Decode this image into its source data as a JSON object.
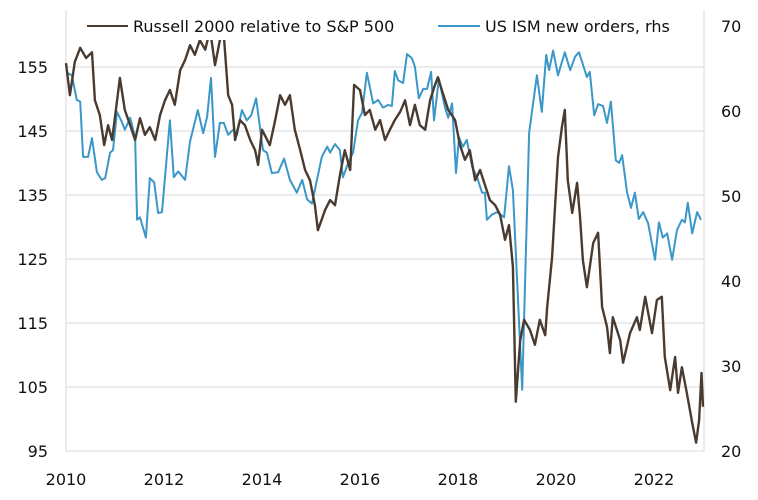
{
  "chart_data": {
    "type": "line",
    "title": "",
    "xlabel": "",
    "ylabel": "",
    "ylabel_right": "",
    "grid": true,
    "legend_position": "top",
    "x_ticks": [
      "2010",
      "2012",
      "2014",
      "2016",
      "2018",
      "2020",
      "2022"
    ],
    "x_tick_values": [
      2010,
      2012,
      2014,
      2016,
      2018,
      2020,
      2022
    ],
    "y_left_ticks": [
      "95",
      "105",
      "115",
      "125",
      "135",
      "145",
      "155"
    ],
    "y_left_tick_values": [
      95,
      105,
      115,
      125,
      135,
      145,
      155
    ],
    "y_right_ticks": [
      "20",
      "30",
      "40",
      "50",
      "60",
      "70"
    ],
    "y_right_tick_values": [
      20,
      30,
      40,
      50,
      60,
      70
    ],
    "xlim": [
      2010,
      2023
    ],
    "ylim_left": [
      95,
      155
    ],
    "ylim_right": [
      20,
      70
    ],
    "series": [
      {
        "name": "Russell 2000 relative to S&P 500",
        "axis": "left",
        "color": "#4a3b30",
        "points": [
          [
            2010.0,
            155.6
          ],
          [
            2010.08,
            150.6
          ],
          [
            2010.18,
            155.8
          ],
          [
            2010.29,
            158.0
          ],
          [
            2010.41,
            156.4
          ],
          [
            2010.53,
            157.3
          ],
          [
            2010.59,
            149.8
          ],
          [
            2010.69,
            147.5
          ],
          [
            2010.78,
            142.8
          ],
          [
            2010.86,
            145.9
          ],
          [
            2010.94,
            143.6
          ],
          [
            2011.1,
            153.3
          ],
          [
            2011.2,
            148.3
          ],
          [
            2011.31,
            145.9
          ],
          [
            2011.41,
            143.6
          ],
          [
            2011.51,
            147.0
          ],
          [
            2011.61,
            144.4
          ],
          [
            2011.71,
            145.6
          ],
          [
            2011.82,
            143.6
          ],
          [
            2011.92,
            147.5
          ],
          [
            2012.02,
            149.8
          ],
          [
            2012.12,
            151.4
          ],
          [
            2012.22,
            149.1
          ],
          [
            2012.33,
            154.5
          ],
          [
            2012.43,
            156.1
          ],
          [
            2012.53,
            158.4
          ],
          [
            2012.63,
            156.9
          ],
          [
            2012.73,
            159.2
          ],
          [
            2012.84,
            157.7
          ],
          [
            2012.94,
            160.8
          ],
          [
            2013.04,
            155.3
          ],
          [
            2013.14,
            159.2
          ],
          [
            2013.22,
            160.0
          ],
          [
            2013.31,
            150.6
          ],
          [
            2013.39,
            149.1
          ],
          [
            2013.45,
            143.6
          ],
          [
            2013.55,
            146.7
          ],
          [
            2013.65,
            145.9
          ],
          [
            2013.76,
            143.6
          ],
          [
            2013.86,
            142.0
          ],
          [
            2013.92,
            139.7
          ],
          [
            2014.0,
            145.2
          ],
          [
            2014.16,
            142.8
          ],
          [
            2014.27,
            146.7
          ],
          [
            2014.37,
            150.6
          ],
          [
            2014.47,
            149.1
          ],
          [
            2014.57,
            150.6
          ],
          [
            2014.67,
            145.2
          ],
          [
            2014.78,
            142.0
          ],
          [
            2014.88,
            138.9
          ],
          [
            2014.98,
            137.3
          ],
          [
            2015.08,
            133.4
          ],
          [
            2015.14,
            129.5
          ],
          [
            2015.29,
            132.7
          ],
          [
            2015.39,
            134.2
          ],
          [
            2015.49,
            133.4
          ],
          [
            2015.59,
            138.1
          ],
          [
            2015.69,
            142.0
          ],
          [
            2015.8,
            138.9
          ],
          [
            2015.88,
            152.2
          ],
          [
            2016.0,
            151.4
          ],
          [
            2016.1,
            147.5
          ],
          [
            2016.2,
            148.3
          ],
          [
            2016.31,
            145.2
          ],
          [
            2016.41,
            146.7
          ],
          [
            2016.51,
            143.6
          ],
          [
            2016.61,
            145.2
          ],
          [
            2016.71,
            146.7
          ],
          [
            2016.82,
            148.0
          ],
          [
            2016.92,
            149.8
          ],
          [
            2017.02,
            145.9
          ],
          [
            2017.12,
            149.1
          ],
          [
            2017.22,
            145.9
          ],
          [
            2017.33,
            145.2
          ],
          [
            2017.43,
            149.8
          ],
          [
            2017.53,
            152.2
          ],
          [
            2017.59,
            153.4
          ],
          [
            2017.67,
            151.4
          ],
          [
            2017.8,
            148.3
          ],
          [
            2017.94,
            146.7
          ],
          [
            2018.04,
            142.8
          ],
          [
            2018.14,
            140.5
          ],
          [
            2018.24,
            142.0
          ],
          [
            2018.35,
            137.3
          ],
          [
            2018.45,
            138.9
          ],
          [
            2018.55,
            136.6
          ],
          [
            2018.65,
            134.2
          ],
          [
            2018.76,
            133.4
          ],
          [
            2018.86,
            131.9
          ],
          [
            2018.96,
            128.0
          ],
          [
            2019.04,
            130.3
          ],
          [
            2019.12,
            123.8
          ],
          [
            2019.18,
            102.7
          ],
          [
            2019.27,
            112.3
          ],
          [
            2019.35,
            115.5
          ],
          [
            2019.47,
            113.9
          ],
          [
            2019.57,
            111.6
          ],
          [
            2019.67,
            115.5
          ],
          [
            2019.78,
            113.1
          ],
          [
            2019.82,
            117.5
          ],
          [
            2019.92,
            125.3
          ],
          [
            2019.98,
            133.1
          ],
          [
            2020.04,
            140.9
          ],
          [
            2020.12,
            145.6
          ],
          [
            2020.18,
            148.3
          ],
          [
            2020.24,
            137.3
          ],
          [
            2020.33,
            132.2
          ],
          [
            2020.43,
            136.9
          ],
          [
            2020.49,
            131.6
          ],
          [
            2020.55,
            124.8
          ],
          [
            2020.63,
            120.6
          ],
          [
            2020.76,
            127.5
          ],
          [
            2020.86,
            129.1
          ],
          [
            2020.94,
            117.5
          ],
          [
            2021.04,
            114.4
          ],
          [
            2021.1,
            110.3
          ],
          [
            2021.16,
            115.9
          ],
          [
            2021.31,
            112.3
          ],
          [
            2021.37,
            108.8
          ],
          [
            2021.51,
            113.4
          ],
          [
            2021.65,
            115.9
          ],
          [
            2021.71,
            113.9
          ],
          [
            2021.82,
            119.1
          ],
          [
            2021.96,
            113.4
          ],
          [
            2022.06,
            118.6
          ],
          [
            2022.16,
            119.1
          ],
          [
            2022.22,
            109.7
          ],
          [
            2022.33,
            104.5
          ],
          [
            2022.43,
            109.7
          ],
          [
            2022.49,
            104.1
          ],
          [
            2022.57,
            108.1
          ],
          [
            2022.67,
            104.1
          ],
          [
            2022.78,
            99.4
          ],
          [
            2022.86,
            96.3
          ],
          [
            2022.92,
            99.8
          ],
          [
            2022.97,
            107.2
          ],
          [
            2023.0,
            101.9
          ]
        ]
      },
      {
        "name": "US ISM new orders, rhs",
        "axis": "right",
        "color": "#3b97c8",
        "points": [
          [
            2010.02,
            64.5
          ],
          [
            2010.12,
            64.2
          ],
          [
            2010.22,
            61.3
          ],
          [
            2010.29,
            61.1
          ],
          [
            2010.35,
            54.6
          ],
          [
            2010.45,
            54.6
          ],
          [
            2010.53,
            56.8
          ],
          [
            2010.63,
            52.8
          ],
          [
            2010.73,
            51.9
          ],
          [
            2010.8,
            52.1
          ],
          [
            2010.9,
            55.1
          ],
          [
            2010.96,
            55.4
          ],
          [
            2011.04,
            59.9
          ],
          [
            2011.14,
            58.7
          ],
          [
            2011.2,
            57.8
          ],
          [
            2011.31,
            59.2
          ],
          [
            2011.41,
            56.9
          ],
          [
            2011.45,
            47.2
          ],
          [
            2011.51,
            47.5
          ],
          [
            2011.63,
            45.1
          ],
          [
            2011.71,
            52.1
          ],
          [
            2011.8,
            51.6
          ],
          [
            2011.88,
            48.0
          ],
          [
            2011.96,
            48.1
          ],
          [
            2012.12,
            58.9
          ],
          [
            2012.2,
            52.2
          ],
          [
            2012.29,
            52.9
          ],
          [
            2012.43,
            51.9
          ],
          [
            2012.53,
            56.4
          ],
          [
            2012.69,
            60.1
          ],
          [
            2012.8,
            57.4
          ],
          [
            2012.88,
            59.3
          ],
          [
            2012.96,
            63.9
          ],
          [
            2013.04,
            54.6
          ],
          [
            2013.14,
            58.6
          ],
          [
            2013.22,
            58.6
          ],
          [
            2013.31,
            57.2
          ],
          [
            2013.41,
            57.8
          ],
          [
            2013.49,
            57.2
          ],
          [
            2013.59,
            60.1
          ],
          [
            2013.69,
            58.9
          ],
          [
            2013.78,
            59.5
          ],
          [
            2013.88,
            61.5
          ],
          [
            2014.02,
            55.4
          ],
          [
            2014.1,
            55.1
          ],
          [
            2014.2,
            52.7
          ],
          [
            2014.33,
            52.8
          ],
          [
            2014.45,
            54.4
          ],
          [
            2014.57,
            51.9
          ],
          [
            2014.71,
            50.4
          ],
          [
            2014.82,
            51.9
          ],
          [
            2014.92,
            49.6
          ],
          [
            2015.02,
            49.1
          ],
          [
            2015.22,
            54.6
          ],
          [
            2015.33,
            55.8
          ],
          [
            2015.39,
            55.1
          ],
          [
            2015.49,
            56.1
          ],
          [
            2015.59,
            55.4
          ],
          [
            2015.65,
            52.2
          ],
          [
            2015.76,
            53.9
          ],
          [
            2015.86,
            55.1
          ],
          [
            2015.96,
            58.9
          ],
          [
            2016.04,
            59.8
          ],
          [
            2016.14,
            64.5
          ],
          [
            2016.27,
            60.9
          ],
          [
            2016.37,
            61.3
          ],
          [
            2016.47,
            60.4
          ],
          [
            2016.57,
            60.7
          ],
          [
            2016.65,
            60.6
          ],
          [
            2016.71,
            64.7
          ],
          [
            2016.78,
            63.6
          ],
          [
            2016.88,
            63.3
          ],
          [
            2016.96,
            66.7
          ],
          [
            2017.06,
            66.2
          ],
          [
            2017.12,
            65.2
          ],
          [
            2017.2,
            61.5
          ],
          [
            2017.29,
            62.6
          ],
          [
            2017.37,
            62.6
          ],
          [
            2017.45,
            64.6
          ],
          [
            2017.51,
            58.9
          ],
          [
            2017.61,
            63.8
          ],
          [
            2017.73,
            60.5
          ],
          [
            2017.8,
            59.2
          ],
          [
            2017.88,
            60.9
          ],
          [
            2017.96,
            52.7
          ],
          [
            2018.02,
            56.9
          ],
          [
            2018.1,
            55.8
          ],
          [
            2018.18,
            56.6
          ],
          [
            2018.29,
            53.4
          ],
          [
            2018.39,
            52.2
          ],
          [
            2018.49,
            50.4
          ],
          [
            2018.55,
            50.4
          ],
          [
            2018.59,
            47.2
          ],
          [
            2018.69,
            47.8
          ],
          [
            2018.8,
            48.1
          ],
          [
            2018.94,
            47.5
          ],
          [
            2019.04,
            53.5
          ],
          [
            2019.12,
            50.7
          ],
          [
            2019.31,
            27.2
          ],
          [
            2019.45,
            57.4
          ],
          [
            2019.61,
            64.2
          ],
          [
            2019.71,
            59.9
          ],
          [
            2019.8,
            66.6
          ],
          [
            2019.86,
            64.8
          ],
          [
            2019.94,
            67.1
          ],
          [
            2020.04,
            64.2
          ],
          [
            2020.18,
            66.9
          ],
          [
            2020.29,
            64.8
          ],
          [
            2020.39,
            66.4
          ],
          [
            2020.47,
            66.9
          ],
          [
            2020.63,
            64.0
          ],
          [
            2020.69,
            64.6
          ],
          [
            2020.78,
            59.5
          ],
          [
            2020.86,
            60.8
          ],
          [
            2020.96,
            60.6
          ],
          [
            2021.04,
            58.6
          ],
          [
            2021.12,
            61.1
          ],
          [
            2021.22,
            54.2
          ],
          [
            2021.29,
            53.9
          ],
          [
            2021.35,
            54.8
          ],
          [
            2021.45,
            50.4
          ],
          [
            2021.53,
            48.6
          ],
          [
            2021.61,
            50.4
          ],
          [
            2021.69,
            47.3
          ],
          [
            2021.78,
            48.1
          ],
          [
            2021.88,
            46.8
          ],
          [
            2022.02,
            42.5
          ],
          [
            2022.1,
            46.9
          ],
          [
            2022.18,
            45.1
          ],
          [
            2022.27,
            45.6
          ],
          [
            2022.37,
            42.5
          ],
          [
            2022.47,
            46.0
          ],
          [
            2022.57,
            47.2
          ],
          [
            2022.63,
            46.9
          ],
          [
            2022.69,
            49.2
          ],
          [
            2022.78,
            45.6
          ],
          [
            2022.88,
            48.1
          ],
          [
            2022.96,
            47.2
          ]
        ]
      }
    ]
  }
}
